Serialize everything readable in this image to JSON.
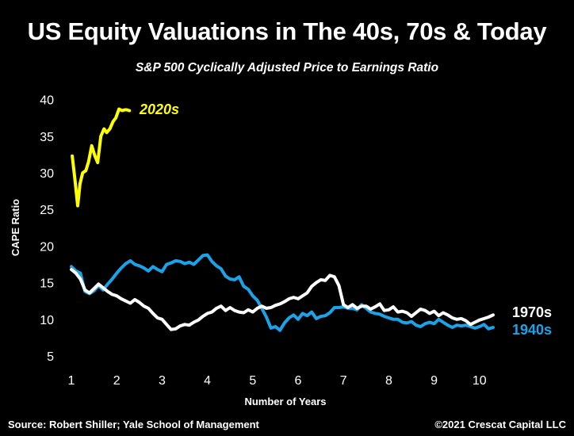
{
  "header": {
    "title": "US Equity Valuations in The 40s, 70s & Today",
    "subtitle": "S&P 500 Cyclically Adjusted Price to Earnings Ratio"
  },
  "footer": {
    "source": "Source: Robert Shiller; Yale School of Management",
    "copyright": "©2021 Crescat Capital LLC"
  },
  "colors": {
    "background": "#000000",
    "2020s": "#ffff00",
    "1970s": "#ffffff",
    "1940s": "#1aa3e8"
  },
  "chart_data": {
    "type": "line",
    "title": "US Equity Valuations in The 40s, 70s & Today",
    "subtitle": "S&P 500 Cyclically Adjusted Price to Earnings Ratio",
    "xlabel": "Number of Years",
    "ylabel": "CAPE Ratio",
    "xlim": [
      1,
      10.3
    ],
    "ylim": [
      5,
      40
    ],
    "xticks": [
      1,
      2,
      3,
      4,
      5,
      6,
      7,
      8,
      9,
      10
    ],
    "yticks": [
      5,
      10,
      15,
      20,
      25,
      30,
      35,
      40
    ],
    "grid": false,
    "legend": "inline labels at line ends",
    "series": [
      {
        "name": "2020s",
        "color": "#ffff00",
        "x": [
          1.02,
          1.08,
          1.14,
          1.19,
          1.25,
          1.32,
          1.38,
          1.45,
          1.52,
          1.58,
          1.65,
          1.72,
          1.78,
          1.85,
          1.92,
          1.98,
          2.05,
          2.12,
          2.18,
          2.22,
          2.28
        ],
        "values": [
          32.3,
          29.0,
          25.5,
          28.5,
          30.0,
          30.3,
          31.5,
          33.7,
          32.3,
          31.4,
          35.0,
          36.0,
          35.5,
          36.0,
          37.0,
          37.5,
          38.7,
          38.5,
          38.6,
          38.6,
          38.5
        ]
      },
      {
        "name": "1970s",
        "color": "#ffffff",
        "x": [
          1.0,
          1.1,
          1.2,
          1.3,
          1.4,
          1.5,
          1.6,
          1.7,
          1.8,
          1.9,
          2.0,
          2.1,
          2.2,
          2.3,
          2.4,
          2.5,
          2.6,
          2.7,
          2.8,
          2.9,
          3.0,
          3.1,
          3.2,
          3.3,
          3.4,
          3.5,
          3.6,
          3.7,
          3.8,
          3.9,
          4.0,
          4.1,
          4.2,
          4.3,
          4.4,
          4.5,
          4.6,
          4.7,
          4.8,
          4.9,
          5.0,
          5.1,
          5.2,
          5.3,
          5.4,
          5.5,
          5.6,
          5.7,
          5.8,
          5.9,
          6.0,
          6.1,
          6.2,
          6.3,
          6.4,
          6.5,
          6.6,
          6.7,
          6.8,
          6.9,
          7.0,
          7.1,
          7.2,
          7.3,
          7.4,
          7.5,
          7.6,
          7.7,
          7.8,
          7.9,
          8.0,
          8.1,
          8.2,
          8.3,
          8.4,
          8.5,
          8.6,
          8.7,
          8.8,
          8.9,
          9.0,
          9.1,
          9.2,
          9.3,
          9.4,
          9.5,
          9.6,
          9.7,
          9.8,
          9.9,
          10.0,
          10.1,
          10.2,
          10.3
        ],
        "values": [
          16.8,
          16.3,
          15.5,
          14.0,
          13.6,
          14.2,
          14.8,
          14.3,
          13.8,
          13.4,
          13.2,
          12.8,
          12.5,
          12.2,
          12.7,
          12.3,
          11.8,
          11.5,
          10.8,
          10.2,
          10.0,
          9.3,
          8.6,
          8.7,
          9.1,
          9.3,
          9.2,
          9.6,
          9.9,
          10.4,
          10.8,
          11.0,
          11.5,
          11.8,
          11.2,
          11.6,
          11.2,
          11.0,
          10.9,
          11.3,
          11.0,
          11.5,
          11.8,
          11.5,
          11.6,
          11.9,
          12.1,
          12.4,
          12.8,
          13.0,
          12.8,
          13.2,
          13.6,
          14.5,
          15.0,
          15.4,
          15.3,
          16.0,
          15.8,
          14.6,
          12.0,
          11.6,
          12.0,
          11.5,
          11.8,
          11.8,
          11.4,
          11.7,
          12.1,
          11.2,
          11.3,
          11.7,
          11.0,
          11.1,
          10.9,
          10.4,
          10.9,
          11.4,
          11.2,
          10.8,
          11.1,
          10.5,
          10.9,
          10.6,
          10.2,
          10.0,
          10.1,
          9.8,
          9.3,
          9.6,
          9.9,
          10.1,
          10.3,
          10.6
        ]
      },
      {
        "name": "1940s",
        "color": "#1aa3e8",
        "x": [
          1.0,
          1.1,
          1.2,
          1.3,
          1.4,
          1.5,
          1.6,
          1.7,
          1.8,
          1.9,
          2.0,
          2.1,
          2.2,
          2.3,
          2.4,
          2.5,
          2.6,
          2.7,
          2.8,
          2.9,
          3.0,
          3.1,
          3.2,
          3.3,
          3.4,
          3.5,
          3.6,
          3.7,
          3.8,
          3.9,
          4.0,
          4.1,
          4.2,
          4.3,
          4.4,
          4.5,
          4.6,
          4.7,
          4.8,
          4.9,
          5.0,
          5.1,
          5.2,
          5.3,
          5.4,
          5.5,
          5.6,
          5.7,
          5.8,
          5.9,
          6.0,
          6.1,
          6.2,
          6.3,
          6.4,
          6.5,
          6.6,
          6.7,
          6.8,
          6.9,
          7.0,
          7.1,
          7.2,
          7.3,
          7.4,
          7.5,
          7.6,
          7.7,
          7.8,
          7.9,
          8.0,
          8.1,
          8.2,
          8.3,
          8.4,
          8.5,
          8.6,
          8.7,
          8.8,
          8.9,
          9.0,
          9.1,
          9.2,
          9.3,
          9.4,
          9.5,
          9.6,
          9.7,
          9.8,
          9.9,
          10.0,
          10.1,
          10.2,
          10.3
        ],
        "values": [
          17.2,
          16.6,
          16.3,
          13.8,
          13.5,
          13.9,
          14.6,
          14.0,
          14.8,
          15.5,
          16.3,
          17.0,
          17.6,
          18.0,
          17.5,
          17.3,
          17.0,
          16.6,
          17.2,
          16.8,
          16.5,
          17.5,
          17.7,
          18.0,
          17.9,
          17.6,
          17.8,
          17.5,
          18.1,
          18.7,
          18.8,
          17.9,
          17.3,
          16.9,
          15.9,
          15.5,
          15.4,
          15.8,
          14.5,
          14.1,
          13.2,
          12.6,
          11.5,
          10.3,
          8.8,
          9.0,
          8.5,
          9.5,
          10.2,
          10.6,
          10.0,
          10.8,
          10.5,
          11.0,
          10.1,
          10.4,
          10.5,
          10.9,
          11.6,
          11.6,
          11.7,
          11.5,
          11.5,
          11.3,
          12.0,
          11.5,
          11.0,
          10.8,
          10.7,
          10.4,
          10.2,
          10.0,
          10.0,
          9.6,
          9.5,
          9.7,
          9.2,
          9.0,
          9.4,
          9.6,
          9.4,
          10.0,
          9.6,
          9.2,
          8.9,
          9.2,
          9.1,
          9.2,
          9.0,
          8.8,
          9.0,
          9.3,
          8.7,
          8.9
        ]
      }
    ]
  }
}
